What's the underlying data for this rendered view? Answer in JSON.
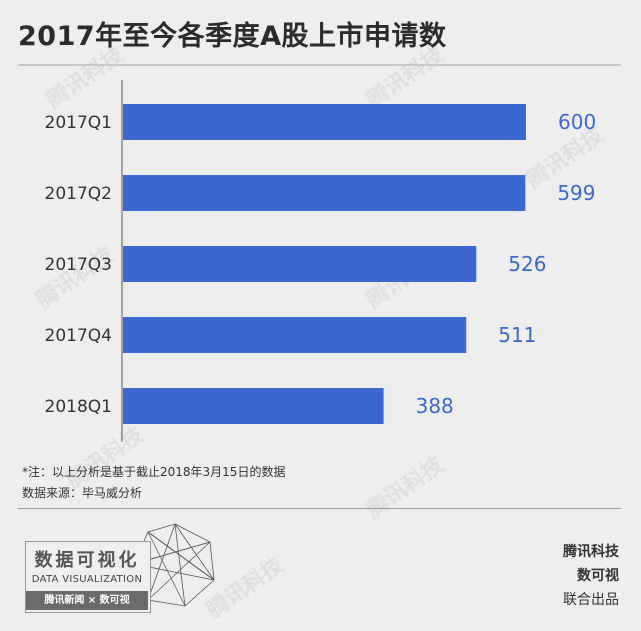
{
  "title": "2017年至今各季度A股上市申请数",
  "chart_data": {
    "type": "bar",
    "orientation": "horizontal",
    "categories": [
      "2017Q1",
      "2017Q2",
      "2017Q3",
      "2017Q4",
      "2018Q1"
    ],
    "values": [
      600,
      599,
      526,
      511,
      388
    ],
    "data_labels": [
      "600",
      "599",
      "526",
      "511",
      "388"
    ],
    "xlim": [
      0,
      700
    ],
    "grid": false,
    "bar_color": "#3d68d0",
    "label_color": "#3d68d0"
  },
  "footnotes": [
    "*注：以上分析是基于截止2018年3月15日的数据",
    "数据来源：毕马威分析"
  ],
  "logo": {
    "cn": "数据可视化",
    "en": "DATA VISUALIZATION",
    "strip": "腾讯新闻 × 数可视"
  },
  "credits": [
    "腾讯科技",
    "数可视",
    "联合出品"
  ],
  "watermark_text": "腾讯科技"
}
